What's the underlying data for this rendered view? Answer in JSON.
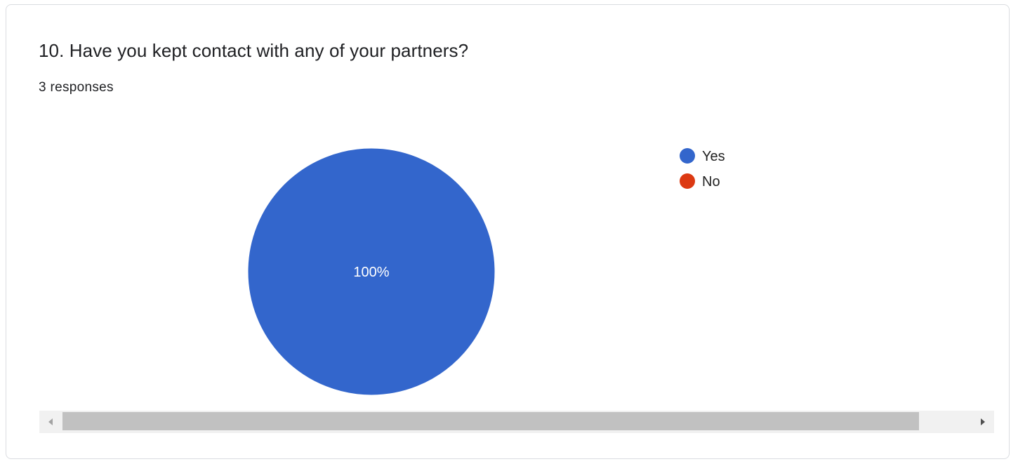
{
  "question": {
    "title": "10. Have you kept contact with any of your partners?",
    "responses": "3 responses"
  },
  "chart_data": {
    "type": "pie",
    "title": "10. Have you kept contact with any of your partners?",
    "categories": [
      "Yes",
      "No"
    ],
    "values": [
      100,
      0
    ],
    "colors": [
      "#3366cc",
      "#dc3912"
    ],
    "slice_labels": [
      "100%",
      ""
    ],
    "legend_position": "right"
  },
  "scrollbar": {
    "left_arrow_icon": "triangle-left-icon",
    "right_arrow_icon": "triangle-right-icon"
  }
}
